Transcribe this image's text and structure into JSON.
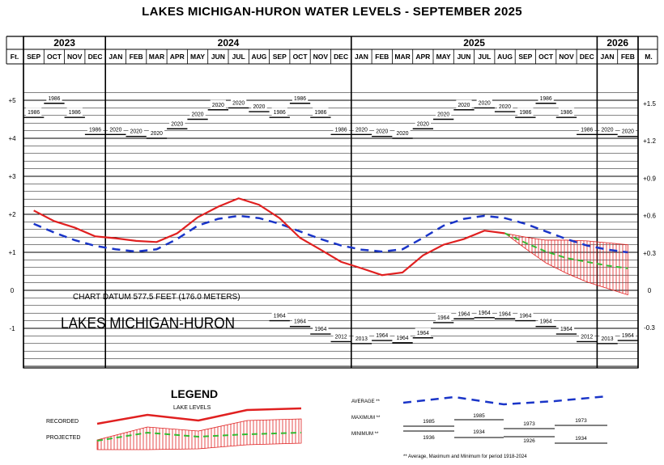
{
  "chart_data": {
    "type": "line",
    "title": "LAKES MICHIGAN-HURON WATER LEVELS - SEPTEMBER 2025",
    "years": [
      {
        "label": "2023",
        "span": 4
      },
      {
        "label": "2024",
        "span": 12
      },
      {
        "label": "2025",
        "span": 12
      },
      {
        "label": "2026",
        "span": 2
      }
    ],
    "months": [
      "SEP",
      "OCT",
      "NOV",
      "DEC",
      "JAN",
      "FEB",
      "MAR",
      "APR",
      "MAY",
      "JUN",
      "JUL",
      "AUG",
      "SEP",
      "OCT",
      "NOV",
      "DEC",
      "JAN",
      "FEB",
      "MAR",
      "APR",
      "MAY",
      "JUN",
      "JUL",
      "AUG",
      "SEP",
      "OCT",
      "NOV",
      "DEC",
      "JAN",
      "FEB"
    ],
    "left_unit": "Ft.",
    "right_unit": "M.",
    "left_ticks": [
      {
        "value": 5,
        "label": "+5"
      },
      {
        "value": 4,
        "label": "+4"
      },
      {
        "value": 3,
        "label": "+3"
      },
      {
        "value": 2,
        "label": "+2"
      },
      {
        "value": 1,
        "label": "+1"
      },
      {
        "value": 0,
        "label": "0"
      },
      {
        "value": -1,
        "label": "-1"
      }
    ],
    "right_ticks": [
      {
        "value": 4.92,
        "label": "+1.5"
      },
      {
        "value": 3.94,
        "label": "+1.2"
      },
      {
        "value": 2.95,
        "label": "+0.9"
      },
      {
        "value": 1.97,
        "label": "+0.6"
      },
      {
        "value": 0.98,
        "label": "+0.3"
      },
      {
        "value": 0,
        "label": "0"
      },
      {
        "value": -0.98,
        "label": "-0.3"
      }
    ],
    "ylim": [
      -2.0,
      6.8
    ],
    "recorded": [
      2.1,
      1.82,
      1.65,
      1.42,
      1.37,
      1.3,
      1.27,
      1.5,
      1.92,
      2.2,
      2.42,
      2.25,
      1.9,
      1.38,
      1.07,
      0.75,
      0.58,
      0.4,
      0.47,
      0.92,
      1.2,
      1.35,
      1.57,
      1.5
    ],
    "average": [
      1.75,
      1.52,
      1.32,
      1.17,
      1.08,
      1.02,
      1.08,
      1.35,
      1.7,
      1.88,
      1.96,
      1.9,
      1.75,
      1.55,
      1.35,
      1.18,
      1.07,
      1.02,
      1.08,
      1.38,
      1.7,
      1.88,
      1.96,
      1.9,
      1.75,
      1.55,
      1.35,
      1.18,
      1.07,
      1.0
    ],
    "projected_mid": [
      1.5,
      1.25,
      1.02,
      0.85,
      0.75,
      0.65,
      0.58
    ],
    "projected_high": [
      1.5,
      1.4,
      1.32,
      1.32,
      1.3,
      1.25,
      1.2
    ],
    "projected_low": [
      1.5,
      1.1,
      0.72,
      0.45,
      0.22,
      0.05,
      -0.12
    ],
    "maximum": [
      {
        "value": 4.55,
        "year": "1986"
      },
      {
        "value": 4.92,
        "year": "1986"
      },
      {
        "value": 4.55,
        "year": "1986"
      },
      {
        "value": 4.1,
        "year": "1986"
      },
      {
        "value": 4.1,
        "year": "2020"
      },
      {
        "value": 4.05,
        "year": "2020"
      },
      {
        "value": 4.0,
        "year": "2020"
      },
      {
        "value": 4.25,
        "year": "2020"
      },
      {
        "value": 4.5,
        "year": "2020"
      },
      {
        "value": 4.75,
        "year": "2020"
      },
      {
        "value": 4.8,
        "year": "2020"
      },
      {
        "value": 4.7,
        "year": "2020"
      },
      {
        "value": 4.55,
        "year": "1986"
      },
      {
        "value": 4.92,
        "year": "1986"
      },
      {
        "value": 4.55,
        "year": "1986"
      },
      {
        "value": 4.1,
        "year": "1986"
      },
      {
        "value": 4.1,
        "year": "2020"
      },
      {
        "value": 4.05,
        "year": "2020"
      },
      {
        "value": 4.0,
        "year": "2020"
      },
      {
        "value": 4.25,
        "year": "2020"
      },
      {
        "value": 4.5,
        "year": "2020"
      },
      {
        "value": 4.75,
        "year": "2020"
      },
      {
        "value": 4.8,
        "year": "2020"
      },
      {
        "value": 4.7,
        "year": "2020"
      },
      {
        "value": 4.55,
        "year": "1986"
      },
      {
        "value": 4.92,
        "year": "1986"
      },
      {
        "value": 4.55,
        "year": "1986"
      },
      {
        "value": 4.1,
        "year": "1986"
      },
      {
        "value": 4.1,
        "year": "2020"
      },
      {
        "value": 4.05,
        "year": "2020"
      }
    ],
    "minimum": [
      null,
      null,
      null,
      null,
      null,
      null,
      null,
      null,
      null,
      null,
      null,
      null,
      {
        "value": -0.8,
        "year": "1964"
      },
      {
        "value": -0.95,
        "year": "1964"
      },
      {
        "value": -1.15,
        "year": "1964"
      },
      {
        "value": -1.35,
        "year": "2012"
      },
      {
        "value": -1.4,
        "year": "2013"
      },
      {
        "value": -1.32,
        "year": "1964"
      },
      {
        "value": -1.38,
        "year": "1964"
      },
      {
        "value": -1.25,
        "year": "1964"
      },
      {
        "value": -0.85,
        "year": "1964"
      },
      {
        "value": -0.75,
        "year": "1964"
      },
      {
        "value": -0.72,
        "year": "1964"
      },
      {
        "value": -0.75,
        "year": "1964"
      },
      {
        "value": -0.8,
        "year": "1964"
      },
      {
        "value": -0.95,
        "year": "1964"
      },
      {
        "value": -1.15,
        "year": "1964"
      },
      {
        "value": -1.35,
        "year": "2012"
      },
      {
        "value": -1.4,
        "year": "2013"
      },
      {
        "value": -1.32,
        "year": "1964"
      }
    ],
    "datum_note": "CHART DATUM  577.5 FEET (176.0 METERS)",
    "lake_name": "LAKES MICHIGAN-HURON"
  },
  "legend": {
    "title": "LEGEND",
    "subtitle": "LAKE LEVELS",
    "recorded_label": "RECORDED",
    "projected_label": "PROJECTED",
    "average_label": "AVERAGE **",
    "maximum_label": "MAXIMUM **",
    "minimum_label": "MINIMUM **",
    "max_years": [
      "1985",
      "1985",
      "1973",
      "1973"
    ],
    "min_years": [
      "1936",
      "1934",
      "1926",
      "1934"
    ],
    "footnote": "** Average, Maximum and Minimum for period 1918-2024"
  },
  "colors": {
    "recorded": "#e02020",
    "average": "#1a35c8",
    "projected": "#33bb33",
    "projection_band": "#e02020",
    "grid": "#000000"
  }
}
